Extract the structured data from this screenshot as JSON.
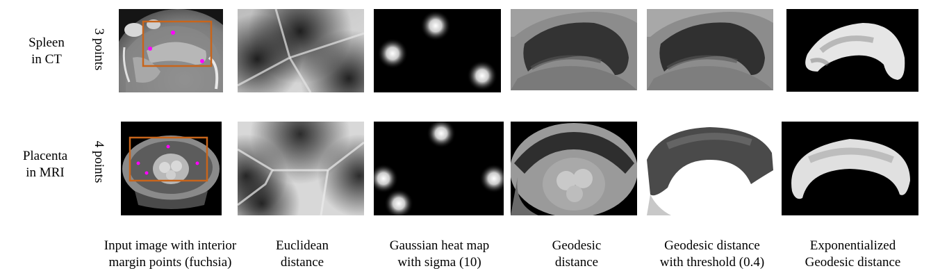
{
  "rows": [
    {
      "organ_line1": "Spleen",
      "organ_line2": "in CT",
      "points": "3 points"
    },
    {
      "organ_line1": "Placenta",
      "organ_line2": "in MRI",
      "points": "4 points"
    }
  ],
  "captions": [
    {
      "line1": "Input image with interior",
      "line2": "margin points (fuchsia)"
    },
    {
      "line1": "Euclidean",
      "line2": "distance"
    },
    {
      "line1": "Gaussian heat map",
      "line2": "with sigma (10)"
    },
    {
      "line1": "Geodesic",
      "line2": "distance"
    },
    {
      "line1": "Geodesic distance",
      "line2": "with threshold (0.4)"
    },
    {
      "line1": "Exponentialized",
      "line2": "Geodesic distance"
    }
  ],
  "colors": {
    "point_marker": "#ff00ff",
    "bounding_box": "#c8651b"
  }
}
